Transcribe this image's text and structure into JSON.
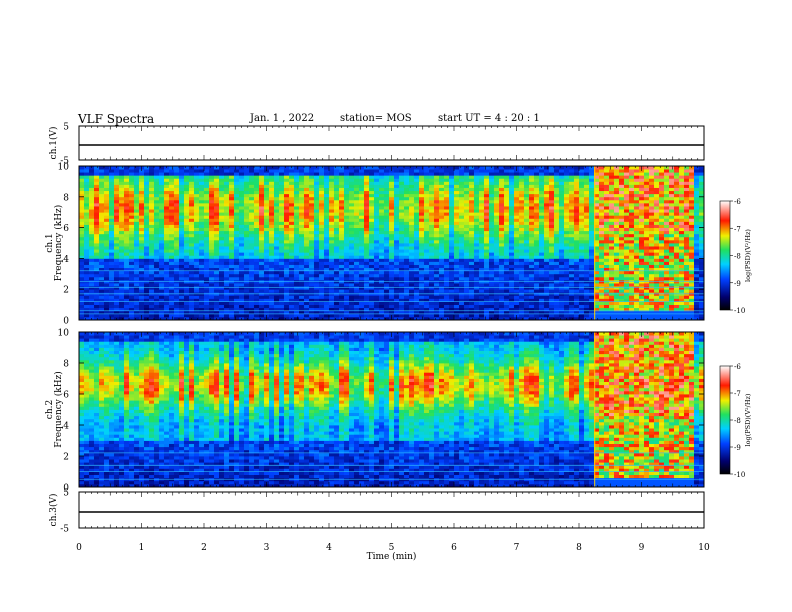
{
  "header": {
    "title": "VLF Spectra",
    "date": "Jan. 1 , 2022",
    "station": "station= MOS",
    "start": "start UT = 4 : 20 : 1"
  },
  "chart_data": [
    {
      "type": "line",
      "ylabel": "ch.1(V)",
      "xlim": [
        0,
        10
      ],
      "ylim": [
        -5,
        5
      ],
      "yticks": [
        "5",
        "-5"
      ],
      "series": [
        {
          "x": [
            0,
            10
          ],
          "values": [
            0,
            0
          ]
        }
      ]
    },
    {
      "type": "heatmap",
      "ylabel": "ch.1\nFrequency (kHz)",
      "xlim": [
        0,
        10
      ],
      "ylim": [
        0,
        10
      ],
      "yticks": [
        "0",
        "2",
        "4",
        "6",
        "8",
        "10"
      ],
      "colorbar": {
        "label": "log(PSD)(V²/Hz)",
        "range": [
          -10,
          -6
        ],
        "ticks": [
          "-6",
          "-7",
          "-8",
          "-9",
          "-10"
        ]
      },
      "features": {
        "interference_band_x": [
          8.25,
          9.8
        ],
        "emission_band_khz": [
          4,
          10
        ],
        "tone_lines_khz": [
          0.4,
          0.6,
          1.2,
          1.7,
          2.1,
          2.5,
          3.2
        ]
      }
    },
    {
      "type": "heatmap",
      "ylabel": "ch.2\nFrequency (kHz)",
      "xlim": [
        0,
        10
      ],
      "ylim": [
        0,
        10
      ],
      "yticks": [
        "0",
        "2",
        "4",
        "6",
        "8",
        "10"
      ],
      "colorbar": {
        "label": "log(PSD)(V²/Hz)",
        "range": [
          -10,
          -6
        ],
        "ticks": [
          "-6",
          "-7",
          "-8",
          "-9",
          "-10"
        ]
      },
      "features": {
        "interference_band_x": [
          8.25,
          9.8
        ],
        "emission_band_khz": [
          3,
          10
        ],
        "tone_lines_khz": [
          0.5,
          1.0,
          1.4,
          2.2
        ]
      }
    },
    {
      "type": "line",
      "ylabel": "ch.3(V)",
      "xlabel": "Time (min)",
      "xlim": [
        0,
        10
      ],
      "ylim": [
        -5,
        5
      ],
      "yticks": [
        "5",
        "-5"
      ],
      "xticks": [
        "0",
        "1",
        "2",
        "3",
        "4",
        "5",
        "6",
        "7",
        "8",
        "9",
        "10"
      ],
      "series": [
        {
          "x": [
            0,
            10
          ],
          "values": [
            0,
            0
          ]
        }
      ]
    }
  ]
}
